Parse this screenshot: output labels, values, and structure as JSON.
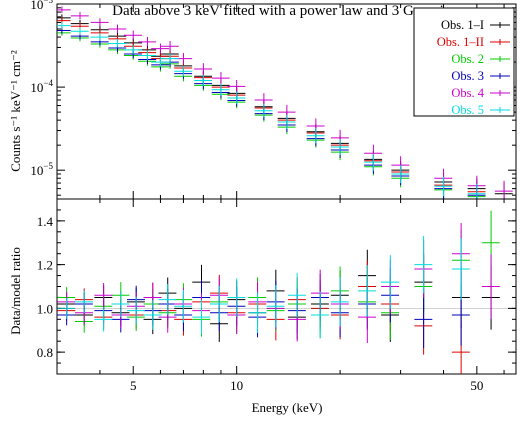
{
  "chart_data": [
    {
      "type": "scatter",
      "panel": "spectrum",
      "title": "Data above 3 keV fitted with a power law and 3 Gaussians",
      "xlabel": "Energy (keV)",
      "ylabel": "Counts s⁻¹ keV⁻¹ cm⁻²",
      "xscale": "log",
      "yscale": "log",
      "xlim": [
        3,
        65
      ],
      "ylim": [
        4.5e-06,
        0.001
      ],
      "yticks": [
        {
          "value": 0.001,
          "base": "10",
          "exp": "−3"
        },
        {
          "value": 0.0001,
          "base": "10",
          "exp": "−4"
        },
        {
          "value": 1e-05,
          "base": "10",
          "exp": "−5"
        }
      ],
      "legend_position": "top-right",
      "grid": false,
      "series": [
        {
          "name": "Obs. 1–I",
          "color": "#000000",
          "x": [
            3.1,
            3.5,
            4.0,
            4.5,
            5.0,
            5.5,
            6.0,
            6.4,
            7.0,
            8.0,
            9.0,
            10,
            12,
            14,
            17,
            20,
            25,
            30,
            40,
            50,
            60
          ],
          "y": [
            0.00068,
            0.00058,
            0.00049,
            0.00041,
            0.00034,
            0.00028,
            0.000235,
            0.00025,
            0.00018,
            0.000135,
            0.000105,
            8.4e-05,
            5.8e-05,
            4.2e-05,
            2.9e-05,
            2.1e-05,
            1.35e-05,
            1e-05,
            7.2e-06,
            6e-06,
            5.2e-06
          ]
        },
        {
          "name": "Obs. 1–II",
          "color": "#dd0000",
          "x": [
            3.1,
            3.5,
            4.0,
            4.5,
            5.0,
            5.5,
            6.0,
            6.4,
            7.0,
            8.0,
            9.0,
            10,
            12,
            14,
            17,
            20,
            25,
            30,
            40,
            50
          ],
          "y": [
            0.00063,
            0.00054,
            0.00045,
            0.00038,
            0.00031,
            0.00026,
            0.00022,
            0.000235,
            0.00017,
            0.00013,
            0.0001,
            8e-05,
            5.6e-05,
            4e-05,
            2.8e-05,
            2e-05,
            1.3e-05,
            9.5e-06,
            6.6e-06,
            5.5e-06
          ]
        },
        {
          "name": "Obs. 2",
          "color": "#00cc00",
          "x": [
            3.1,
            3.5,
            4.0,
            4.5,
            5.0,
            5.5,
            6.0,
            6.4,
            7.0,
            8.0,
            9.0,
            10,
            12,
            14,
            17,
            20,
            25,
            30,
            40,
            50,
            60
          ],
          "y": [
            0.00045,
            0.00039,
            0.00033,
            0.00028,
            0.00024,
            0.000205,
            0.000175,
            0.00019,
            0.000135,
            0.000105,
            8.2e-05,
            6.6e-05,
            4.6e-05,
            3.3e-05,
            2.3e-05,
            1.65e-05,
            1.1e-05,
            8e-06,
            5.8e-06,
            4.8e-06,
            4.3e-06
          ]
        },
        {
          "name": "Obs. 3",
          "color": "#0000bb",
          "x": [
            3.1,
            3.5,
            4.0,
            4.5,
            5.0,
            5.5,
            6.0,
            6.4,
            7.0,
            8.0,
            9.0,
            10,
            12,
            14,
            17,
            20,
            25,
            30,
            40,
            50
          ],
          "y": [
            0.00048,
            0.00041,
            0.00035,
            0.000295,
            0.00025,
            0.000215,
            0.000185,
            0.0002,
            0.000145,
            0.00011,
            8.6e-05,
            6.9e-05,
            4.8e-05,
            3.5e-05,
            2.4e-05,
            1.75e-05,
            1.15e-05,
            8.5e-06,
            6e-06,
            5e-06
          ]
        },
        {
          "name": "Obs. 4",
          "color": "#cc00cc",
          "x": [
            3.1,
            3.5,
            4.0,
            4.5,
            5.0,
            5.5,
            6.0,
            6.4,
            7.0,
            8.0,
            9.0,
            10,
            12,
            14,
            17,
            20,
            25,
            30,
            40,
            50,
            60
          ],
          "y": [
            0.00085,
            0.00072,
            0.0006,
            0.0005,
            0.00042,
            0.00035,
            0.00029,
            0.00031,
            0.00022,
            0.000165,
            0.000128,
            0.000102,
            7e-05,
            5e-05,
            3.4e-05,
            2.45e-05,
            1.6e-05,
            1.15e-05,
            8e-06,
            6.5e-06,
            5.6e-06
          ]
        },
        {
          "name": "Obs. 5",
          "color": "#00dddd",
          "x": [
            3.1,
            3.5,
            4.0,
            4.5,
            5.0,
            5.5,
            6.0,
            6.4,
            7.0,
            8.0,
            9.0,
            10,
            12,
            14,
            17,
            20,
            25,
            30,
            40,
            50
          ],
          "y": [
            0.00055,
            0.00047,
            0.0004,
            0.000335,
            0.00028,
            0.00024,
            0.0002,
            0.00022,
            0.000155,
            0.00012,
            9.3e-05,
            7.4e-05,
            5.2e-05,
            3.8e-05,
            2.6e-05,
            1.9e-05,
            1.25e-05,
            9e-06,
            6.4e-06,
            5.2e-06
          ]
        }
      ]
    },
    {
      "type": "scatter",
      "panel": "ratio",
      "xlabel": "Energy (keV)",
      "ylabel": "Data/model ratio",
      "xscale": "log",
      "yscale": "linear",
      "xlim": [
        3,
        65
      ],
      "ylim": [
        0.7,
        1.5
      ],
      "xticks": [
        5,
        10,
        50
      ],
      "yticks": [
        0.8,
        1.0,
        1.2,
        1.4
      ],
      "grid": false,
      "series": [
        {
          "name": "Obs. 1–I",
          "color": "#000000",
          "x": [
            3.2,
            3.6,
            4.1,
            4.6,
            5.1,
            5.7,
            6.3,
            7.0,
            7.9,
            8.9,
            10,
            11.5,
            13,
            15,
            17.5,
            20,
            24,
            28,
            35,
            45,
            55
          ],
          "y": [
            1.02,
            0.97,
            1.05,
            0.98,
            1.03,
            0.95,
            1.07,
            1.0,
            1.12,
            0.93,
            1.04,
            0.98,
            1.08,
            0.96,
            1.02,
            1.06,
            1.15,
            0.97,
            1.12,
            1.05,
            1.05
          ]
        },
        {
          "name": "Obs. 1–II",
          "color": "#dd0000",
          "x": [
            3.2,
            3.6,
            4.1,
            4.6,
            5.1,
            5.7,
            6.3,
            7.0,
            7.9,
            8.9,
            10,
            11.5,
            13,
            15,
            17.5,
            20,
            24,
            28,
            35,
            45
          ],
          "y": [
            0.99,
            1.04,
            0.96,
            1.02,
            0.97,
            1.05,
            0.99,
            0.95,
            1.03,
            1.07,
            0.98,
            1.02,
            0.95,
            1.04,
            1.0,
            0.97,
            1.1,
            1.02,
            0.92,
            0.8
          ]
        },
        {
          "name": "Obs. 2",
          "color": "#00cc00",
          "x": [
            3.2,
            3.6,
            4.1,
            4.6,
            5.1,
            5.7,
            6.3,
            7.0,
            7.9,
            8.9,
            10,
            11.5,
            13,
            15,
            17.5,
            20,
            24,
            28,
            35,
            45,
            55
          ],
          "y": [
            1.05,
            0.94,
            1.01,
            1.06,
            0.96,
            1.02,
            0.98,
            1.04,
            0.95,
            1.03,
            0.97,
            1.05,
            0.99,
            1.02,
            0.97,
            1.08,
            1.03,
            0.98,
            1.1,
            1.22,
            1.3
          ]
        },
        {
          "name": "Obs. 3",
          "color": "#0000bb",
          "x": [
            3.2,
            3.6,
            4.1,
            4.6,
            5.1,
            5.7,
            6.3,
            7.0,
            7.9,
            8.9,
            10,
            11.5,
            13,
            15,
            17.5,
            20,
            24,
            28,
            35,
            45
          ],
          "y": [
            0.97,
            1.02,
            0.99,
            0.95,
            1.04,
            0.99,
            1.02,
            0.97,
            1.05,
            0.98,
            1.01,
            0.96,
            1.03,
            0.99,
            1.05,
            0.98,
            1.02,
            1.06,
            0.95,
            0.97
          ]
        },
        {
          "name": "Obs. 4",
          "color": "#cc00cc",
          "x": [
            3.2,
            3.6,
            4.1,
            4.6,
            5.1,
            5.7,
            6.3,
            7.0,
            7.9,
            8.9,
            10,
            11.5,
            13,
            15,
            17.5,
            20,
            24,
            28,
            35,
            45,
            55
          ],
          "y": [
            1.03,
            0.98,
            1.06,
            0.97,
            1.01,
            1.05,
            0.96,
            1.02,
            0.99,
            1.06,
            0.97,
            1.03,
            1.0,
            0.95,
            1.07,
            1.02,
            0.96,
            1.1,
            1.18,
            1.25,
            1.1
          ]
        },
        {
          "name": "Obs. 5",
          "color": "#00dddd",
          "x": [
            3.2,
            3.6,
            4.1,
            4.6,
            5.1,
            5.7,
            6.3,
            7.0,
            7.9,
            8.9,
            10,
            11.5,
            13,
            15,
            17.5,
            20,
            24,
            28,
            35,
            45
          ],
          "y": [
            1.0,
            1.03,
            0.95,
            1.02,
            0.99,
            0.97,
            1.04,
            1.01,
            0.96,
            1.02,
            1.05,
            0.98,
            1.01,
            1.06,
            0.97,
            1.03,
            1.08,
            1.12,
            1.2,
            1.18
          ]
        }
      ]
    }
  ]
}
